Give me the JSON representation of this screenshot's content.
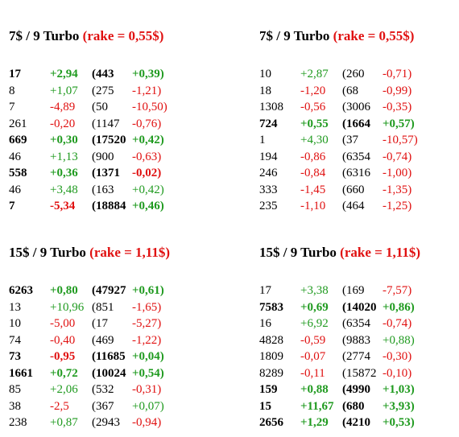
{
  "blocks": [
    {
      "title_prefix": "7$ / 9 Turbo",
      "rake": "(rake = 0,55$)",
      "rows": [
        {
          "n": "17",
          "d": "+2,94",
          "open": "(443",
          "v": "+0,39)",
          "bold": true
        },
        {
          "n": "8",
          "d": "+1,07",
          "open": "(275",
          "v": "-1,21)",
          "bold": false
        },
        {
          "n": "7",
          "d": "-4,89",
          "open": "(50",
          "v": "-10,50)",
          "bold": false
        },
        {
          "n": "261",
          "d": "-0,20",
          "open": "(1147",
          "v": "-0,76)",
          "bold": false
        },
        {
          "n": "669",
          "d": "+0,30",
          "open": "(17520",
          "v": "+0,42)",
          "bold": true
        },
        {
          "n": "46",
          "d": "+1,13",
          "open": "(900",
          "v": "-0,63)",
          "bold": false
        },
        {
          "n": "558",
          "d": "+0,36",
          "open": "(1371",
          "v": "-0,02)",
          "bold": true
        },
        {
          "n": "46",
          "d": "+3,48",
          "open": "(163",
          "v": "+0,42)",
          "bold": false
        },
        {
          "n": "7",
          "d": "-5,34",
          "open": "(18884",
          "v": "+0,46)",
          "bold": true
        }
      ]
    },
    {
      "title_prefix": "7$ / 9 Turbo",
      "rake": "(rake = 0,55$)",
      "rows": [
        {
          "n": "10",
          "d": "+2,87",
          "open": "(260",
          "v": "-0,71)",
          "bold": false
        },
        {
          "n": "18",
          "d": "-1,20",
          "open": "(68",
          "v": "-0,99)",
          "bold": false
        },
        {
          "n": "1308",
          "d": "-0,56",
          "open": "(3006",
          "v": "-0,35)",
          "bold": false
        },
        {
          "n": "724",
          "d": "+0,55",
          "open": "(1664",
          "v": "+0,57)",
          "bold": true
        },
        {
          "n": "1",
          "d": "+4,30",
          "open": "(37",
          "v": "-10,57)",
          "bold": false
        },
        {
          "n": "194",
          "d": "-0,86",
          "open": "(6354",
          "v": "-0,74)",
          "bold": false
        },
        {
          "n": "246",
          "d": "-0,84",
          "open": "(6316",
          "v": "-1,00)",
          "bold": false
        },
        {
          "n": "333",
          "d": "-1,45",
          "open": "(660",
          "v": "-1,35)",
          "bold": false
        },
        {
          "n": "235",
          "d": "-1,10",
          "open": "(464",
          "v": "-1,25)",
          "bold": false
        }
      ]
    },
    {
      "title_prefix": "15$ / 9 Turbo",
      "rake": "(rake = 1,11$)",
      "rows": [
        {
          "n": "6263",
          "d": "+0,80",
          "open": "(47927",
          "v": "+0,61)",
          "bold": true
        },
        {
          "n": "13",
          "d": "+10,96",
          "open": "(851",
          "v": "-1,65)",
          "bold": false
        },
        {
          "n": "10",
          "d": "-5,00",
          "open": "(17",
          "v": "-5,27)",
          "bold": false
        },
        {
          "n": "74",
          "d": "-0,40",
          "open": "(469",
          "v": "-1,22)",
          "bold": false
        },
        {
          "n": "73",
          "d": "-0,95",
          "open": "(11685",
          "v": "+0,04)",
          "bold": true
        },
        {
          "n": "1661",
          "d": "+0,72",
          "open": "(10024",
          "v": "+0,54)",
          "bold": true
        },
        {
          "n": "85",
          "d": "+2,06",
          "open": "(532",
          "v": "-0,31)",
          "bold": false
        },
        {
          "n": "38",
          "d": "-2,5",
          "open": "(367",
          "v": "+0,07)",
          "bold": false
        },
        {
          "n": "238",
          "d": "+0,87",
          "open": "(2943",
          "v": "-0,94)",
          "bold": false
        }
      ]
    },
    {
      "title_prefix": "15$ / 9 Turbo",
      "rake": "(rake = 1,11$)",
      "rows": [
        {
          "n": "17",
          "d": "+3,38",
          "open": "(169",
          "v": "-7,57)",
          "bold": false
        },
        {
          "n": "7583",
          "d": "+0,69",
          "open": "(14020",
          "v": "+0,86)",
          "bold": true
        },
        {
          "n": "16",
          "d": "+6,92",
          "open": "(6354",
          "v": "-0,74)",
          "bold": false
        },
        {
          "n": "4828",
          "d": "-0,59",
          "open": "(9883",
          "v": "+0,88)",
          "bold": false
        },
        {
          "n": "1809",
          "d": "-0,07",
          "open": "(2774",
          "v": "-0,30)",
          "bold": false
        },
        {
          "n": "8289",
          "d": "-0,11",
          "open": "(15872",
          "v": "-0,10)",
          "bold": false
        },
        {
          "n": "159",
          "d": "+0,88",
          "open": "(4990",
          "v": "+1,03)",
          "bold": true
        },
        {
          "n": "15",
          "d": "+11,67",
          "open": "(680",
          "v": "+3,93)",
          "bold": true
        },
        {
          "n": "2656",
          "d": "+1,29",
          "open": "(4210",
          "v": "+0,53)",
          "bold": true
        }
      ]
    }
  ],
  "colors": {
    "positive": "#1f9a1f",
    "negative": "#e01010",
    "rake": "#e01010"
  }
}
